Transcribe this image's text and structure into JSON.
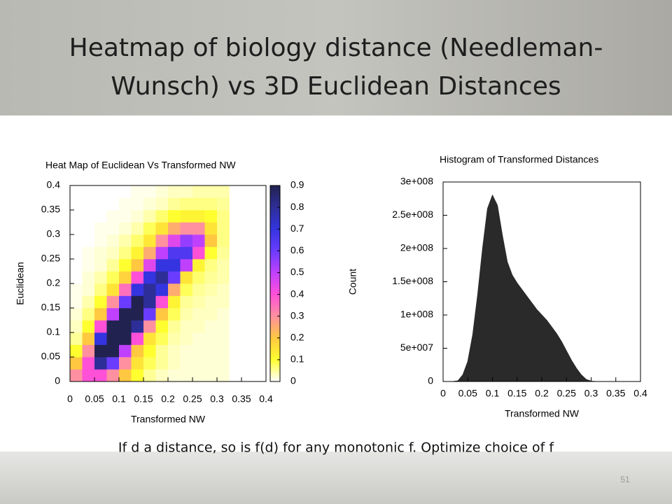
{
  "slide": {
    "title_lines": [
      "Heatmap of biology distance (Needleman-",
      "Wunsch) vs 3D Euclidean Distances"
    ],
    "caption": "If d a distance, so is f(d) for any monotonic f. Optimize choice of f",
    "page_number": "51"
  },
  "chart_data": [
    {
      "type": "heatmap",
      "title": "Heat Map of Euclidean Vs Transformed NW",
      "x_label": "Transformed NW",
      "y_label": "Euclidean",
      "x_bins": [
        0,
        0.025,
        0.05,
        0.075,
        0.1,
        0.125,
        0.15,
        0.175,
        0.2,
        0.225,
        0.25,
        0.275,
        0.3,
        0.325
      ],
      "y_bins": [
        0,
        0.025,
        0.05,
        0.075,
        0.1,
        0.125,
        0.15,
        0.175,
        0.2,
        0.225,
        0.25,
        0.275,
        0.3,
        0.325,
        0.35,
        0.375,
        0.4
      ],
      "values": [
        [
          0.3,
          0.4,
          0.4,
          0.3,
          0.2,
          0.1,
          0.05,
          0.03,
          0.02,
          0.02,
          0.02,
          0.02,
          0.02
        ],
        [
          0.2,
          0.4,
          0.8,
          0.6,
          0.3,
          0.15,
          0.08,
          0.05,
          0.03,
          0.02,
          0.02,
          0.02,
          0.02
        ],
        [
          0.1,
          0.3,
          0.9,
          0.9,
          0.5,
          0.2,
          0.1,
          0.05,
          0.03,
          0.02,
          0.02,
          0.02,
          0.02
        ],
        [
          0.05,
          0.2,
          0.7,
          0.9,
          0.9,
          0.4,
          0.15,
          0.08,
          0.04,
          0.03,
          0.02,
          0.02,
          0.02
        ],
        [
          0.03,
          0.1,
          0.4,
          0.9,
          0.9,
          0.8,
          0.3,
          0.1,
          0.05,
          0.03,
          0.03,
          0.02,
          0.02
        ],
        [
          0.02,
          0.06,
          0.2,
          0.5,
          0.9,
          0.9,
          0.6,
          0.2,
          0.08,
          0.04,
          0.03,
          0.03,
          0.02
        ],
        [
          0.01,
          0.04,
          0.1,
          0.3,
          0.6,
          0.9,
          0.8,
          0.4,
          0.12,
          0.05,
          0.04,
          0.03,
          0.03
        ],
        [
          0.01,
          0.02,
          0.06,
          0.15,
          0.35,
          0.7,
          0.8,
          0.7,
          0.25,
          0.08,
          0.05,
          0.04,
          0.03
        ],
        [
          0,
          0.02,
          0.04,
          0.08,
          0.18,
          0.4,
          0.7,
          0.8,
          0.6,
          0.15,
          0.07,
          0.05,
          0.04
        ],
        [
          0,
          0.01,
          0.02,
          0.05,
          0.1,
          0.2,
          0.45,
          0.7,
          0.7,
          0.5,
          0.12,
          0.06,
          0.04
        ],
        [
          0,
          0.01,
          0.02,
          0.03,
          0.06,
          0.12,
          0.25,
          0.5,
          0.65,
          0.65,
          0.4,
          0.1,
          0.05
        ],
        [
          0,
          0,
          0.01,
          0.02,
          0.04,
          0.07,
          0.14,
          0.3,
          0.45,
          0.55,
          0.5,
          0.2,
          0.06
        ],
        [
          0,
          0,
          0.01,
          0.01,
          0.02,
          0.04,
          0.08,
          0.15,
          0.25,
          0.3,
          0.3,
          0.15,
          0.06
        ],
        [
          0,
          0,
          0,
          0.01,
          0.01,
          0.02,
          0.04,
          0.07,
          0.1,
          0.12,
          0.12,
          0.1,
          0.06
        ],
        [
          0,
          0,
          0,
          0,
          0.01,
          0.01,
          0.02,
          0.03,
          0.05,
          0.06,
          0.06,
          0.06,
          0.05
        ],
        [
          0,
          0,
          0,
          0,
          0,
          0.01,
          0.01,
          0.02,
          0.03,
          0.03,
          0.04,
          0.04,
          0.04
        ]
      ],
      "xlim": [
        0,
        0.4
      ],
      "xticks": [
        0,
        0.05,
        0.1,
        0.15,
        0.2,
        0.25,
        0.3,
        0.35,
        0.4
      ],
      "ylim": [
        0,
        0.4
      ],
      "yticks": [
        0,
        0.05,
        0.1,
        0.15,
        0.2,
        0.25,
        0.3,
        0.35,
        0.4
      ],
      "zlim": [
        0,
        0.9
      ],
      "zticks": [
        0,
        0.1,
        0.2,
        0.3,
        0.4,
        0.5,
        0.6,
        0.7,
        0.8,
        0.9
      ],
      "colormap": [
        "#ffffff",
        "#ffff30",
        "#ffc840",
        "#ff90a0",
        "#ff50d8",
        "#c040ff",
        "#6a3cff",
        "#3434e0",
        "#2e2e98",
        "#222250"
      ]
    },
    {
      "type": "area",
      "title": "Histogram of Transformed Distances",
      "x_label": "Transformed NW",
      "y_label": "Count",
      "color": "#2a2a2a",
      "x": [
        0,
        0.01,
        0.02,
        0.03,
        0.04,
        0.05,
        0.06,
        0.07,
        0.08,
        0.09,
        0.1,
        0.11,
        0.12,
        0.13,
        0.14,
        0.15,
        0.16,
        0.17,
        0.18,
        0.19,
        0.2,
        0.21,
        0.22,
        0.23,
        0.24,
        0.25,
        0.26,
        0.27,
        0.28,
        0.29,
        0.3,
        0.31,
        0.32
      ],
      "values": [
        0,
        0,
        0,
        1000000,
        10000000,
        30000000,
        70000000,
        130000000,
        200000000,
        260000000,
        280000000,
        265000000,
        220000000,
        180000000,
        160000000,
        148000000,
        138000000,
        128000000,
        118000000,
        108000000,
        100000000,
        92000000,
        82000000,
        72000000,
        60000000,
        46000000,
        32000000,
        20000000,
        10000000,
        3000000,
        500000,
        0,
        0
      ],
      "xlim": [
        0,
        0.4
      ],
      "xticks": [
        0,
        0.05,
        0.1,
        0.15,
        0.2,
        0.25,
        0.3,
        0.35,
        0.4
      ],
      "ylim": [
        0,
        300000000
      ],
      "yticks": [
        0,
        {
          "value": 50000000,
          "label": "5e+007"
        },
        {
          "value": 100000000,
          "label": "1e+008"
        },
        {
          "value": 150000000,
          "label": "1.5e+008"
        },
        {
          "value": 200000000,
          "label": "2e+008"
        },
        {
          "value": 250000000,
          "label": "2.5e+008"
        },
        {
          "value": 300000000,
          "label": "3e+008"
        }
      ]
    }
  ]
}
